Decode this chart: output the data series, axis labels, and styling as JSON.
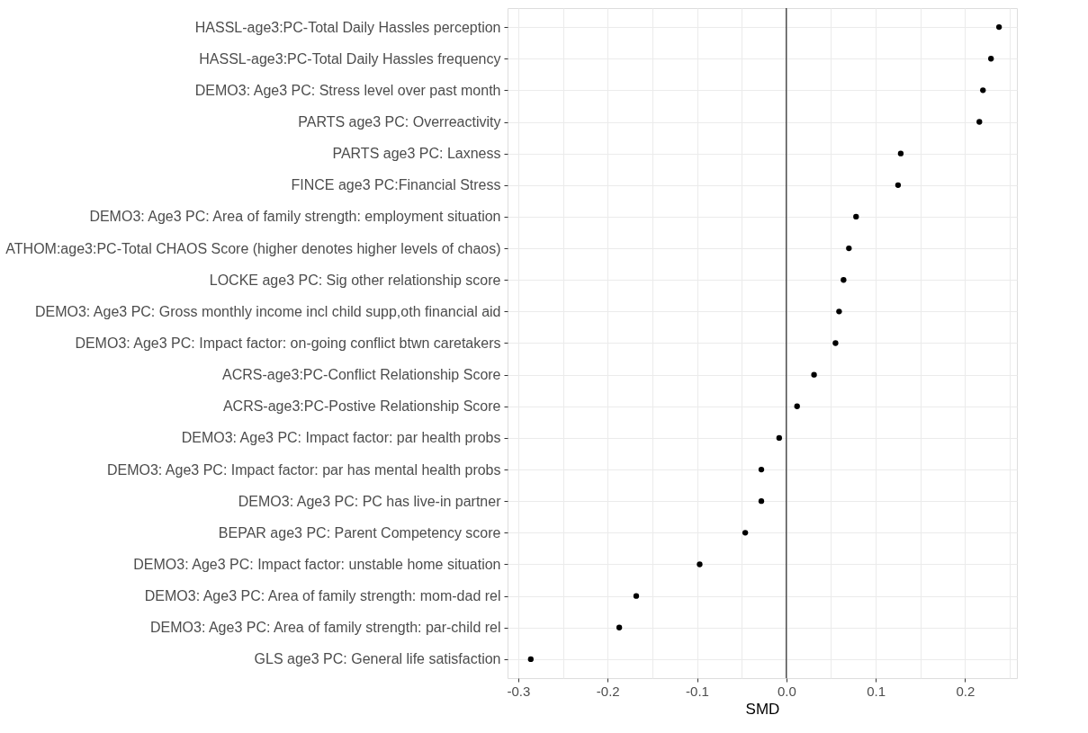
{
  "chart_data": {
    "type": "scatter",
    "xlabel": "SMD",
    "categories": [
      "HASSL-age3:PC-Total Daily Hassles perception",
      "HASSL-age3:PC-Total Daily Hassles frequency",
      "DEMO3: Age3 PC: Stress level over past month",
      "PARTS age3 PC: Overreactivity",
      "PARTS age3 PC: Laxness",
      "FINCE age3 PC:Financial Stress",
      "DEMO3: Age3 PC: Area of family strength: employment situation",
      "ATHOM:age3:PC-Total CHAOS Score (higher denotes higher levels of chaos)",
      "LOCKE age3 PC: Sig other relationship score",
      "DEMO3: Age3 PC: Gross monthly income incl child supp,oth financial aid",
      "DEMO3: Age3 PC: Impact factor: on-going conflict btwn caretakers",
      "ACRS-age3:PC-Conflict Relationship Score",
      "ACRS-age3:PC-Postive Relationship Score",
      "DEMO3: Age3 PC: Impact factor: par health probs",
      "DEMO3: Age3 PC: Impact factor: par has mental health probs",
      "DEMO3: Age3 PC: PC has live-in partner",
      "BEPAR age3 PC: Parent Competency score",
      "DEMO3: Age3 PC: Impact factor: unstable home situation",
      "DEMO3: Age3 PC: Area of family strength: mom-dad rel",
      "DEMO3: Age3 PC: Area of family strength: par-child rel",
      "GLS age3 PC: General life satisfaction"
    ],
    "orientation": "horizontal",
    "series": [
      {
        "color": "#000000",
        "values": [
          0.238,
          0.229,
          0.22,
          0.216,
          0.128,
          0.125,
          0.078,
          0.07,
          0.064,
          0.059,
          0.055,
          0.031,
          0.012,
          -0.008,
          -0.028,
          -0.028,
          -0.046,
          -0.097,
          -0.168,
          -0.187,
          -0.286
        ]
      }
    ],
    "xlim": [
      -0.312,
      0.258
    ],
    "xticks": [
      {
        "value": -0.3,
        "label": "-0.3"
      },
      {
        "value": -0.25,
        "label": null
      },
      {
        "value": -0.2,
        "label": "-0.2"
      },
      {
        "value": -0.15,
        "label": null
      },
      {
        "value": -0.1,
        "label": "-0.1"
      },
      {
        "value": -0.05,
        "label": null
      },
      {
        "value": 0,
        "label": "0.0"
      },
      {
        "value": 0.05,
        "label": null
      },
      {
        "value": 0.1,
        "label": "0.1"
      },
      {
        "value": 0.15,
        "label": null
      },
      {
        "value": 0.2,
        "label": "0.2"
      },
      {
        "value": 0.25,
        "label": null
      }
    ],
    "ref_lines": [
      {
        "axis": "x",
        "value": 0,
        "color": "#000000"
      }
    ],
    "grid": true,
    "marker": "circle"
  }
}
